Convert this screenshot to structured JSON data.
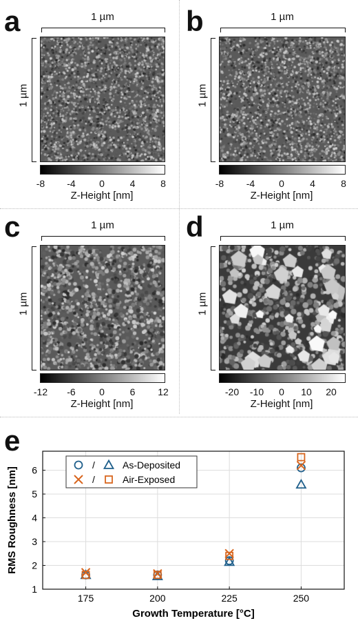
{
  "panels": [
    {
      "letter": "a",
      "scale_x": "1 µm",
      "scale_y": "1 µm",
      "colorbar": {
        "ticks": [
          "-8",
          "-4",
          "0",
          "4",
          "8"
        ],
        "min": -8,
        "max": 8,
        "title": "Z-Height [nm]"
      },
      "texture": "fine"
    },
    {
      "letter": "b",
      "scale_x": "1 µm",
      "scale_y": "1 µm",
      "colorbar": {
        "ticks": [
          "-8",
          "-4",
          "0",
          "4",
          "8"
        ],
        "min": -8,
        "max": 8,
        "title": "Z-Height [nm]"
      },
      "texture": "fine"
    },
    {
      "letter": "c",
      "scale_x": "1 µm",
      "scale_y": "1 µm",
      "colorbar": {
        "ticks": [
          "-12",
          "-6",
          "0",
          "6",
          "12"
        ],
        "min": -12,
        "max": 12,
        "title": "Z-Height [nm]"
      },
      "texture": "medium"
    },
    {
      "letter": "d",
      "scale_x": "1 µm",
      "scale_y": "1 µm",
      "colorbar": {
        "ticks": [
          "-20",
          "-10",
          "0",
          "10",
          "20"
        ],
        "min": -25,
        "max": 25,
        "title": "Z-Height [nm]"
      },
      "texture": "coarse"
    }
  ],
  "chart_data": {
    "type": "scatter",
    "panel_letter": "e",
    "xlabel": "Growth Temperature [°C]",
    "ylabel": "RMS Roughness [nm]",
    "xlim": [
      160,
      265
    ],
    "ylim": [
      1,
      6.8
    ],
    "xticks": [
      175,
      200,
      225,
      250
    ],
    "yticks": [
      1,
      2,
      3,
      4,
      5,
      6
    ],
    "grid": true,
    "legend_position": "top-left",
    "legend": [
      {
        "markers": [
          "circle",
          "triangle"
        ],
        "separator": "/",
        "label": "As-Deposited",
        "color": "#1f5f8b"
      },
      {
        "markers": [
          "x",
          "square"
        ],
        "separator": "/",
        "label": "Air-Exposed",
        "color": "#d8661e"
      }
    ],
    "series": [
      {
        "marker": "circle",
        "color": "#1f5f8b",
        "x": [
          175,
          200,
          225,
          250
        ],
        "y": [
          1.6,
          1.6,
          2.2,
          6.1
        ]
      },
      {
        "marker": "triangle",
        "color": "#1f5f8b",
        "x": [
          175,
          200,
          225,
          250
        ],
        "y": [
          1.6,
          1.55,
          2.15,
          5.4
        ]
      },
      {
        "marker": "x",
        "color": "#d8661e",
        "x": [
          175,
          200,
          225,
          250
        ],
        "y": [
          1.7,
          1.65,
          2.5,
          6.2
        ]
      },
      {
        "marker": "square",
        "color": "#d8661e",
        "x": [
          175,
          200,
          225,
          250
        ],
        "y": [
          1.6,
          1.6,
          2.4,
          6.55
        ]
      }
    ]
  }
}
